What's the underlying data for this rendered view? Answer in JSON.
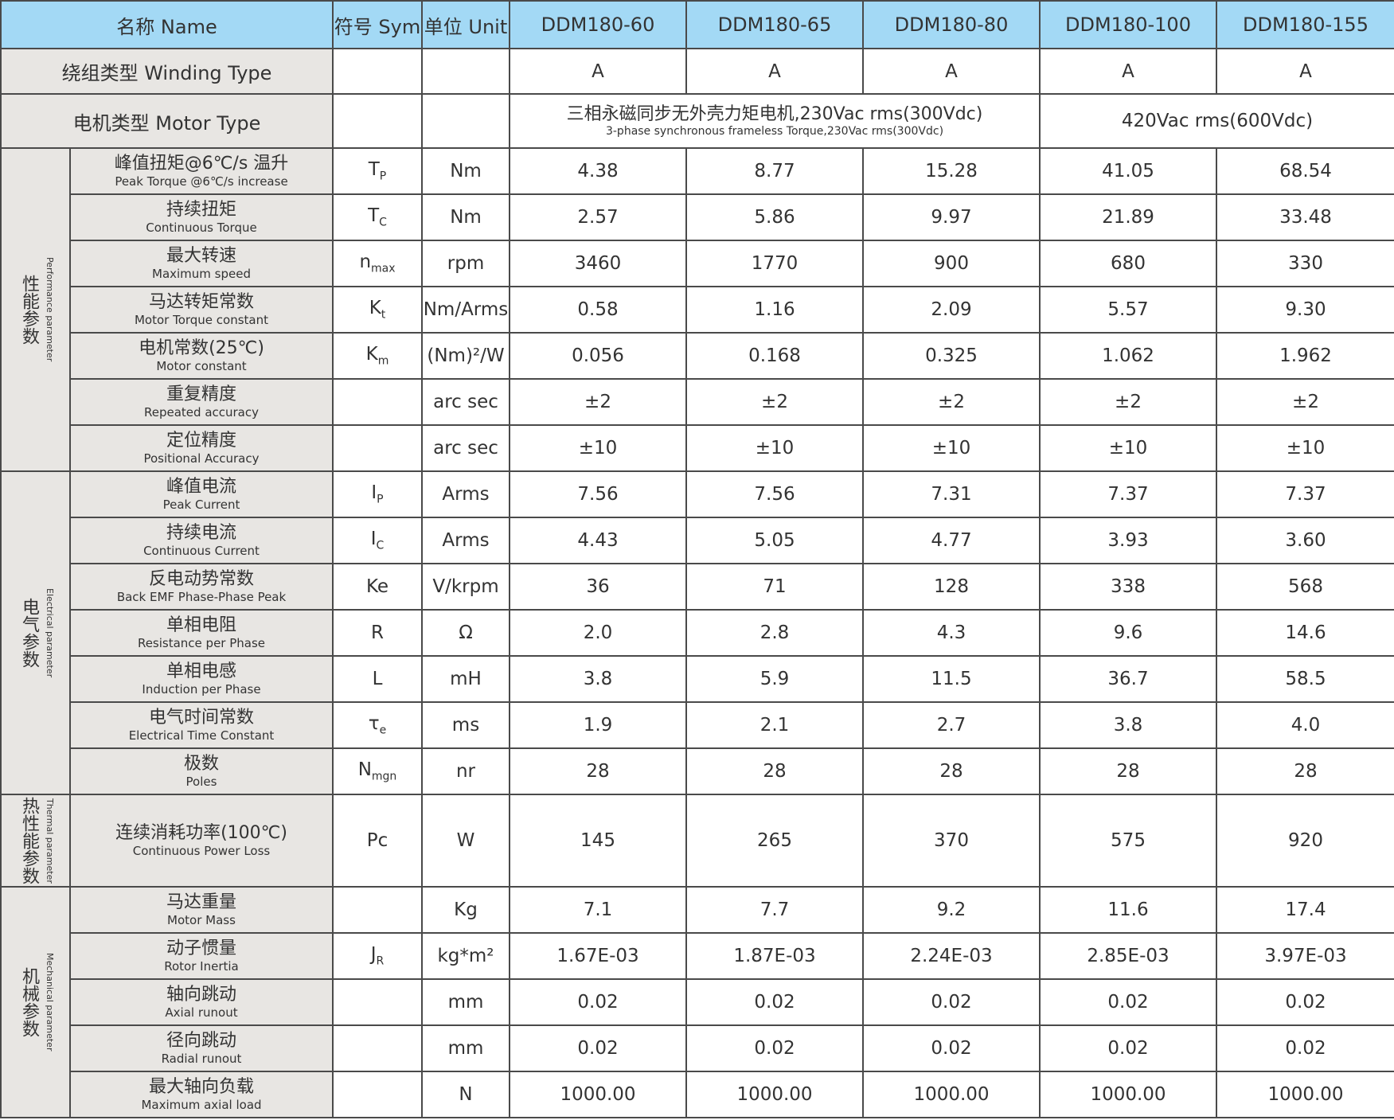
{
  "header": {
    "name": "名称 Name",
    "sym": "符号 Sym",
    "unit": "单位 Unit",
    "models": [
      "DDM180-60",
      "DDM180-65",
      "DDM180-80",
      "DDM180-100",
      "DDM180-155"
    ]
  },
  "winding": {
    "label": "绕组类型  Winding Type",
    "values": [
      "A",
      "A",
      "A",
      "A",
      "A"
    ]
  },
  "motor_type": {
    "label": "电机类型  Motor Type",
    "group1_cn": "三相永磁同步无外壳力矩电机,230Vac rms(300Vdc)",
    "group1_en": "3-phase synchronous frameless Torque,230Vac rms(300Vdc)",
    "group2": "420Vac rms(600Vdc)"
  },
  "groups": [
    {
      "cn": "性能参数",
      "en": "Performance parameter",
      "rows": [
        {
          "cn": "峰值扭矩@6℃/s 温升",
          "en": "Peak Torque @6℃/s increase",
          "sym": "T",
          "sub": "P",
          "unit": "Nm",
          "values": [
            "4.38",
            "8.77",
            "15.28",
            "41.05",
            "68.54"
          ]
        },
        {
          "cn": "持续扭矩",
          "en": "Continuous Torque",
          "sym": "T",
          "sub": "C",
          "unit": "Nm",
          "values": [
            "2.57",
            "5.86",
            "9.97",
            "21.89",
            "33.48"
          ]
        },
        {
          "cn": "最大转速",
          "en": "Maximum speed",
          "sym": "n",
          "sub": "max",
          "unit": "rpm",
          "values": [
            "3460",
            "1770",
            "900",
            "680",
            "330"
          ]
        },
        {
          "cn": "马达转矩常数",
          "en": "Motor Torque constant",
          "sym": "K",
          "sub": "t",
          "unit": "Nm/Arms",
          "values": [
            "0.58",
            "1.16",
            "2.09",
            "5.57",
            "9.30"
          ]
        },
        {
          "cn": "电机常数(25℃)",
          "en": "Motor constant",
          "sym": "K",
          "sub": "m",
          "unit": "(Nm)²/W",
          "values": [
            "0.056",
            "0.168",
            "0.325",
            "1.062",
            "1.962"
          ]
        },
        {
          "cn": "重复精度",
          "en": "Repeated accuracy",
          "sym": "",
          "sub": "",
          "unit": "arc sec",
          "values": [
            "±2",
            "±2",
            "±2",
            "±2",
            "±2"
          ]
        },
        {
          "cn": "定位精度",
          "en": "Positional Accuracy",
          "sym": "",
          "sub": "",
          "unit": "arc sec",
          "values": [
            "±10",
            "±10",
            "±10",
            "±10",
            "±10"
          ]
        }
      ]
    },
    {
      "cn": "电气参数",
      "en": "Electrical parameter",
      "rows": [
        {
          "cn": "峰值电流",
          "en": "Peak Current",
          "sym": "I",
          "sub": "P",
          "unit": "Arms",
          "values": [
            "7.56",
            "7.56",
            "7.31",
            "7.37",
            "7.37"
          ]
        },
        {
          "cn": "持续电流",
          "en": "Continuous Current",
          "sym": "I",
          "sub": "C",
          "unit": "Arms",
          "values": [
            "4.43",
            "5.05",
            "4.77",
            "3.93",
            "3.60"
          ]
        },
        {
          "cn": "反电动势常数",
          "en": "Back EMF Phase-Phase Peak",
          "sym": "Ke",
          "sub": "",
          "unit": "V/krpm",
          "values": [
            "36",
            "71",
            "128",
            "338",
            "568"
          ]
        },
        {
          "cn": "单相电阻",
          "en": "Resistance per Phase",
          "sym": "R",
          "sub": "",
          "unit": "Ω",
          "values": [
            "2.0",
            "2.8",
            "4.3",
            "9.6",
            "14.6"
          ]
        },
        {
          "cn": "单相电感",
          "en": "Induction per Phase",
          "sym": "L",
          "sub": "",
          "unit": "mH",
          "values": [
            "3.8",
            "5.9",
            "11.5",
            "36.7",
            "58.5"
          ]
        },
        {
          "cn": "电气时间常数",
          "en": "Electrical Time Constant",
          "sym": "τ",
          "sub": "e",
          "unit": "ms",
          "values": [
            "1.9",
            "2.1",
            "2.7",
            "3.8",
            "4.0"
          ]
        },
        {
          "cn": "极数",
          "en": "Poles",
          "sym": "N",
          "sub": "mgn",
          "unit": "nr",
          "values": [
            "28",
            "28",
            "28",
            "28",
            "28"
          ]
        }
      ]
    },
    {
      "cn": "热性能参数",
      "en": "Thermal parameter",
      "rows": [
        {
          "cn": "连续消耗功率(100℃)",
          "en": "Continuous Power Loss",
          "sym": "Pc",
          "sub": "",
          "unit": "W",
          "values": [
            "145",
            "265",
            "370",
            "575",
            "920"
          ],
          "tall": true
        }
      ]
    },
    {
      "cn": "机械参数",
      "en": "Mechanical parameter",
      "rows": [
        {
          "cn": "马达重量",
          "en": "Motor Mass",
          "sym": "",
          "sub": "",
          "unit": "Kg",
          "values": [
            "7.1",
            "7.7",
            "9.2",
            "11.6",
            "17.4"
          ]
        },
        {
          "cn": "动子惯量",
          "en": "Rotor Inertia",
          "sym": "J",
          "sub": "R",
          "unit": "kg*m²",
          "values": [
            "1.67E-03",
            "1.87E-03",
            "2.24E-03",
            "2.85E-03",
            "3.97E-03"
          ]
        },
        {
          "cn": "轴向跳动",
          "en": "Axial runout",
          "sym": "",
          "sub": "",
          "unit": "mm",
          "values": [
            "0.02",
            "0.02",
            "0.02",
            "0.02",
            "0.02"
          ]
        },
        {
          "cn": "径向跳动",
          "en": "Radial runout",
          "sym": "",
          "sub": "",
          "unit": "mm",
          "values": [
            "0.02",
            "0.02",
            "0.02",
            "0.02",
            "0.02"
          ]
        },
        {
          "cn": "最大轴向负载",
          "en": "Maximum axial load",
          "sym": "",
          "sub": "",
          "unit": "N",
          "values": [
            "1000.00",
            "1000.00",
            "1000.00",
            "1000.00",
            "1000.00"
          ]
        }
      ]
    }
  ],
  "colors": {
    "header_bg": "#a3d9f5",
    "label_bg": "#e8e6e3",
    "border": "#4a4a4a"
  }
}
